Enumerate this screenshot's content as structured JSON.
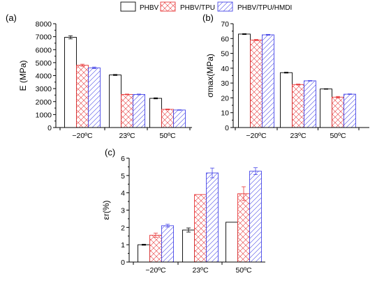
{
  "legend": [
    "PHBV",
    "PHBV/TPU",
    "PHBV/TPU/HMDI"
  ],
  "colors": {
    "PHBV": "#000000",
    "PHBV/TPU": "#e8393a",
    "PHBV/TPU/HMDI": "#4848e8"
  },
  "chart_data": [
    {
      "type": "bar",
      "panel_label": "(a)",
      "title": "",
      "ylabel": "E (MPa)",
      "categories": [
        "−20ºC",
        "23ºC",
        "50ºC"
      ],
      "ylim": [
        0,
        8000
      ],
      "yticks": [
        0,
        1000,
        2000,
        3000,
        4000,
        5000,
        6000,
        7000,
        8000
      ],
      "series": [
        {
          "name": "PHBV",
          "values": [
            6950,
            4050,
            2250
          ],
          "errors": [
            120,
            40,
            40
          ]
        },
        {
          "name": "PHBV/TPU",
          "values": [
            4800,
            2550,
            1400
          ],
          "errors": [
            80,
            30,
            30
          ]
        },
        {
          "name": "PHBV/TPU/HMDI",
          "values": [
            4600,
            2550,
            1350
          ],
          "errors": [
            60,
            30,
            20
          ]
        }
      ]
    },
    {
      "type": "bar",
      "panel_label": "(b)",
      "title": "",
      "ylabel": "σmax(MPa)",
      "categories": [
        "−20ºC",
        "23ºC",
        "50ºC"
      ],
      "ylim": [
        0,
        70
      ],
      "yticks": [
        0,
        10,
        20,
        30,
        40,
        50,
        60,
        70
      ],
      "series": [
        {
          "name": "PHBV",
          "values": [
            63,
            37,
            26
          ],
          "errors": [
            0.3,
            0.3,
            0.2
          ]
        },
        {
          "name": "PHBV/TPU",
          "values": [
            59,
            29,
            20.5
          ],
          "errors": [
            0.4,
            0.3,
            0.5
          ]
        },
        {
          "name": "PHBV/TPU/HMDI",
          "values": [
            62.5,
            31.5,
            22.5
          ],
          "errors": [
            0.3,
            0.2,
            0.2
          ]
        }
      ]
    },
    {
      "type": "bar",
      "panel_label": "(c)",
      "title": "",
      "ylabel": "εr(%)",
      "categories": [
        "−20ºC",
        "23ºC",
        "50ºC"
      ],
      "ylim": [
        0,
        6
      ],
      "yticks": [
        0,
        1,
        2,
        3,
        4,
        5,
        6
      ],
      "series": [
        {
          "name": "PHBV",
          "values": [
            1.0,
            1.85,
            2.3
          ],
          "errors": [
            0.03,
            0.12,
            0.0
          ]
        },
        {
          "name": "PHBV/TPU",
          "values": [
            1.55,
            3.9,
            3.95
          ],
          "errors": [
            0.12,
            0.0,
            0.4
          ]
        },
        {
          "name": "PHBV/TPU/HMDI",
          "values": [
            2.1,
            5.15,
            5.25
          ],
          "errors": [
            0.08,
            0.28,
            0.2
          ]
        }
      ]
    }
  ]
}
